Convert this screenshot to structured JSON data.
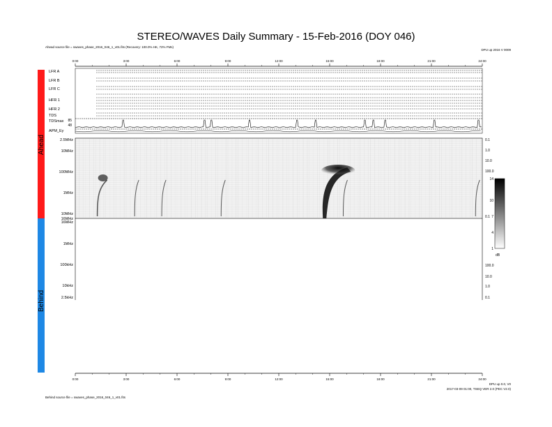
{
  "title": "STEREO/WAVES Daily Summary - 15-Feb-2016 (DOY 046)",
  "ahead_source": "Ahead source file = swaves_phase_2016_046_1_v01.fits (Recovery: 100.0% HK, 72% FMs)",
  "behind_source": "Behind source file = swaves_phase_2016_046_1_v01.fits",
  "top_right_note": "DPU up 2016 V 0009",
  "bottom_right_note1": "DPU up 0.0, V0",
  "bottom_right_note2": "2017-03-09 01:00, TSEQ VER 2.0 (PEC V2.0)",
  "time_ticks": [
    "0:00",
    "3:00",
    "6:00",
    "9:00",
    "12:00",
    "15:00",
    "18:00",
    "21:00",
    "24:00"
  ],
  "side_labels": {
    "ahead": "Ahead",
    "behind": "Behind"
  },
  "hk_panel_labels": [
    "LFR A",
    "LFR B",
    "LFR C",
    "HFR 1",
    "HFR 2",
    "TDS",
    "TDSmax",
    "APM_Ey"
  ],
  "hk_small_values": [
    "85",
    "48"
  ],
  "freq_labels": [
    "2.5MHz",
    "10MHz",
    "100MHz",
    "1MHz",
    "10MHz",
    "16MHz"
  ],
  "behind_freq_labels": [
    "16MHz",
    "1MHz",
    "100kHz",
    "10kHz",
    "2.5kHz"
  ],
  "right_scale_top": [
    "0.1",
    "1.0",
    "10.0",
    "100.0",
    "0.1"
  ],
  "right_scale_bottom": [
    "100.0",
    "10.0",
    "1.0",
    "0.1"
  ],
  "colorbar": {
    "ticks": [
      "14",
      "10",
      "7",
      "4",
      "1"
    ],
    "unit": "dB"
  },
  "chart_data": {
    "type": "heatmap",
    "title": "STEREO/WAVES Daily Summary - 15-Feb-2016 (DOY 046)",
    "xlabel": "",
    "ylabel": "",
    "xlim": [
      0,
      24
    ],
    "x_ticks": [
      0,
      3,
      6,
      9,
      12,
      15,
      18,
      21,
      24
    ],
    "zlim": [
      1,
      14
    ],
    "z_unit": "dB",
    "radio_bursts_ahead_hours": [
      1.3,
      3.5,
      5.1,
      8.6,
      14.6,
      15.8,
      23.6
    ],
    "strongest_burst_hour": 14.6
  },
  "colors": {
    "ahead": "#ff1a1a",
    "behind": "#1e88e5",
    "panel_bg": "#f2f2f2"
  }
}
